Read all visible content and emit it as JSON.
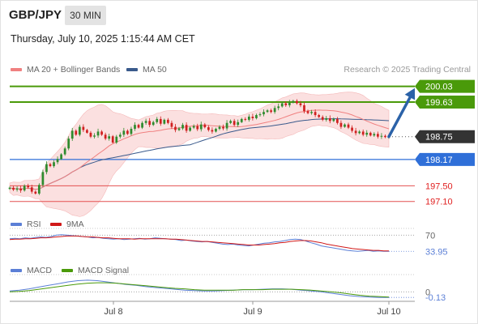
{
  "header": {
    "symbol": "GBP/JPY",
    "timeframe": "30 MIN",
    "datetime": "Thursday, July 10, 2025 1:15:44 AM CET",
    "credit": "Research © 2025 Trading Central"
  },
  "colors": {
    "ma20": "#f08080",
    "ma50": "#3a5a8c",
    "band": "#f9d3d3",
    "candle_up": "#2e8b2e",
    "candle_down": "#d02020",
    "resistance": "#4a9a0a",
    "support": "#2f6fd8",
    "support_red": "#e45050",
    "current": "#333333",
    "rsi": "#5b7fd6",
    "rsi_ma": "#d01818",
    "macd": "#5b7fd6",
    "macd_signal": "#4a9a0a",
    "arrow": "#2b62a8"
  },
  "chart_data": [
    {
      "type": "candlestick",
      "instrument": "GBP/JPY",
      "timeframe": "30 MIN",
      "legend": [
        "MA 20 + Bollinger Bands",
        "MA 50"
      ],
      "x_ticks": [
        "Jul 8",
        "Jul 9",
        "Jul 10"
      ],
      "ylim": [
        196.95,
        200.25
      ],
      "close": [
        197.45,
        197.4,
        197.43,
        197.38,
        197.5,
        197.46,
        197.35,
        197.3,
        197.52,
        197.85,
        198.05,
        198.0,
        198.1,
        198.18,
        198.3,
        198.45,
        198.7,
        198.9,
        198.8,
        199.0,
        198.92,
        198.85,
        198.75,
        198.78,
        198.88,
        198.8,
        198.7,
        198.76,
        198.6,
        198.75,
        198.8,
        198.9,
        198.82,
        198.95,
        199.05,
        198.98,
        199.1,
        199.15,
        199.05,
        199.12,
        199.2,
        199.08,
        199.18,
        199.1,
        199.0,
        198.92,
        198.96,
        199.05,
        198.9,
        198.98,
        199.02,
        198.94,
        199.06,
        198.99,
        198.92,
        198.88,
        198.95,
        199.0,
        198.96,
        199.1,
        199.15,
        199.05,
        199.12,
        199.2,
        199.18,
        199.26,
        199.22,
        199.3,
        199.32,
        199.38,
        199.42,
        199.38,
        199.48,
        199.52,
        199.6,
        199.55,
        199.62,
        199.66,
        199.6,
        199.55,
        199.4,
        199.35,
        199.38,
        199.3,
        199.25,
        199.18,
        199.22,
        199.15,
        199.2,
        199.1,
        199.0,
        199.06,
        198.98,
        198.9,
        198.84,
        198.88,
        198.8,
        198.85,
        198.78,
        198.82,
        198.75,
        198.77,
        198.74,
        198.75
      ],
      "indicators": {
        "ma20_last": 198.95,
        "ma50_last": 199.27
      },
      "levels": [
        {
          "price": 200.03,
          "label": "200.03",
          "kind": "resistance"
        },
        {
          "price": 199.63,
          "label": "199.63",
          "kind": "resistance"
        },
        {
          "price": 198.75,
          "label": "198.75",
          "kind": "current"
        },
        {
          "price": 198.17,
          "label": "198.17",
          "kind": "support"
        },
        {
          "price": 197.5,
          "label": "197.50",
          "kind": "support_minor"
        },
        {
          "price": 197.1,
          "label": "197.10",
          "kind": "support_minor"
        }
      ],
      "projection": {
        "from": 198.75,
        "to": 200.03
      }
    },
    {
      "type": "line",
      "title": "RSI",
      "legend": [
        "RSI",
        "9MA"
      ],
      "ylim": [
        20,
        85
      ],
      "y_ticks": [
        "70"
      ],
      "series": [
        {
          "name": "RSI",
          "values": [
            62,
            63,
            62,
            64,
            63,
            65,
            66,
            65,
            67,
            70,
            71,
            70,
            69,
            68,
            67,
            66,
            64,
            65,
            63,
            62,
            61,
            62,
            60,
            61,
            62,
            63,
            61,
            62,
            64,
            63,
            62,
            61,
            60,
            58,
            59,
            57,
            56,
            55,
            56,
            54,
            52,
            50,
            49,
            50,
            48,
            47,
            46,
            48,
            50,
            52,
            53,
            55,
            56,
            58,
            60,
            61,
            60,
            57,
            53,
            50,
            46,
            44,
            42,
            40,
            38,
            36,
            35,
            34,
            35,
            36,
            34,
            35,
            34,
            33.95
          ]
        },
        {
          "name": "9MA",
          "values": [
            60,
            61,
            61,
            62,
            62,
            63,
            64,
            64,
            65,
            66,
            67,
            68,
            68,
            68,
            67,
            66,
            66,
            65,
            64,
            64,
            63,
            62,
            62,
            62,
            61,
            62,
            62,
            62,
            62,
            62,
            62,
            61,
            61,
            60,
            59,
            58,
            57,
            56,
            56,
            55,
            54,
            53,
            52,
            51,
            50,
            49,
            48,
            48,
            48,
            49,
            50,
            51,
            53,
            54,
            56,
            57,
            58,
            58,
            57,
            55,
            53,
            50,
            48,
            46,
            44,
            42,
            40,
            39,
            38,
            37,
            36,
            36,
            35,
            35
          ]
        }
      ],
      "last_value": "33.95"
    },
    {
      "type": "line",
      "title": "MACD",
      "legend": [
        "MACD",
        "MACD Signal"
      ],
      "ylim": [
        -0.22,
        0.4
      ],
      "y_ticks": [
        "0"
      ],
      "series": [
        {
          "name": "MACD",
          "values": [
            0.02,
            0.04,
            0.07,
            0.11,
            0.15,
            0.19,
            0.23,
            0.26,
            0.27,
            0.26,
            0.23,
            0.2,
            0.17,
            0.15,
            0.12,
            0.1,
            0.08,
            0.06,
            0.04,
            0.03,
            0.02,
            0.02,
            0.03,
            0.04,
            0.05,
            0.05,
            0.06,
            0.07,
            0.07,
            0.06,
            0.04,
            0.02,
            0.0,
            -0.03,
            -0.06,
            -0.09,
            -0.11,
            -0.12,
            -0.13,
            -0.13
          ]
        },
        {
          "name": "MACD Signal",
          "values": [
            0.0,
            0.01,
            0.03,
            0.06,
            0.09,
            0.12,
            0.15,
            0.18,
            0.2,
            0.21,
            0.21,
            0.2,
            0.18,
            0.16,
            0.14,
            0.12,
            0.1,
            0.08,
            0.07,
            0.05,
            0.04,
            0.04,
            0.04,
            0.04,
            0.05,
            0.05,
            0.05,
            0.06,
            0.06,
            0.06,
            0.05,
            0.04,
            0.02,
            0.0,
            -0.02,
            -0.05,
            -0.08,
            -0.1,
            -0.11,
            -0.12
          ]
        }
      ],
      "last_value": "-0.13"
    }
  ]
}
